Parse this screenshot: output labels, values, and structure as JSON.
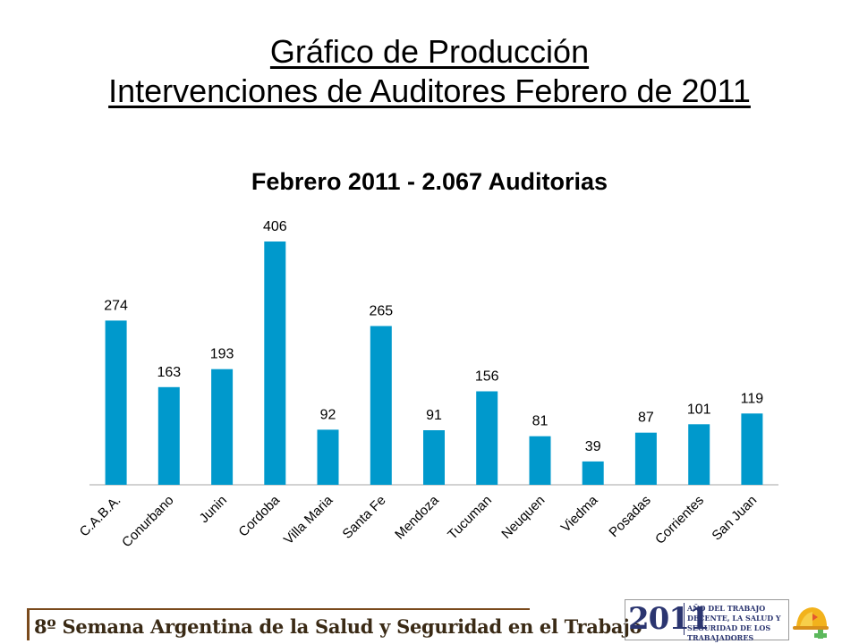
{
  "slide": {
    "title_line1": "Gráfico de Producción",
    "title_line2": "Intervenciones de Auditores Febrero de 2011"
  },
  "chart_data": {
    "type": "bar",
    "title": "Febrero 2011 - 2.067 Auditorias",
    "categories": [
      "C.A.B.A.",
      "Conurbano",
      "Junin",
      "Cordoba",
      "Villa Maria",
      "Santa Fe",
      "Mendoza",
      "Tucuman",
      "Neuquen",
      "Viedma",
      "Posadas",
      "Corrientes",
      "San Juan"
    ],
    "values": [
      274,
      163,
      193,
      406,
      92,
      265,
      91,
      156,
      81,
      39,
      87,
      101,
      119
    ],
    "xlabel": "",
    "ylabel": "",
    "ylim": [
      0,
      406
    ],
    "data_labels": true,
    "grid": false,
    "bar_color": "#0099cc"
  },
  "footer": {
    "text": "8º Semana Argentina de la Salud y Seguridad en el Trabajo",
    "color": "#7a4a1c"
  },
  "logo": {
    "year": "2011",
    "text": "AÑO DEL TRABAJO DECENTE, LA SALUD Y SEGURIDAD DE LOS TRABAJADORES"
  }
}
